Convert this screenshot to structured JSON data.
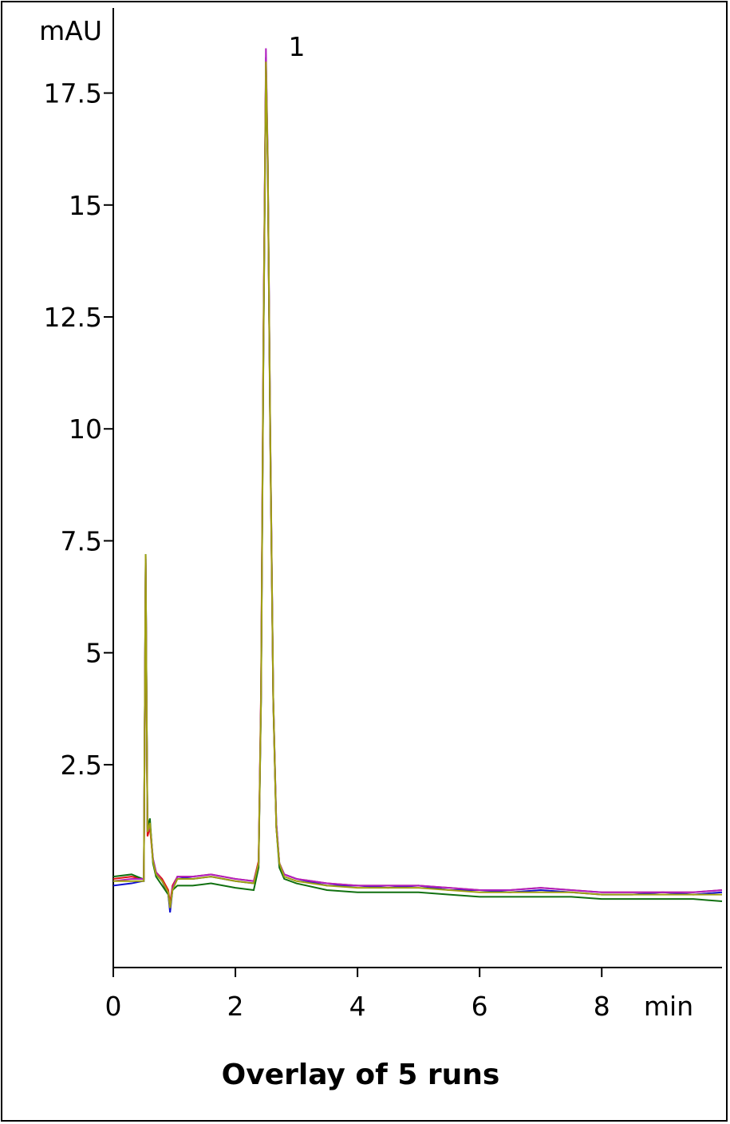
{
  "chart_data": {
    "type": "line",
    "title": "Overlay of 5 runs",
    "y_label": "mAU",
    "x_label": "min",
    "annotation": "1",
    "x": [
      0,
      0.3,
      0.48,
      0.5,
      0.53,
      0.56,
      0.6,
      0.65,
      0.7,
      0.8,
      0.9,
      0.93,
      0.97,
      1.05,
      1.3,
      1.6,
      2.0,
      2.3,
      2.38,
      2.42,
      2.46,
      2.5,
      2.53,
      2.57,
      2.62,
      2.67,
      2.72,
      2.8,
      3.0,
      3.5,
      4.0,
      4.5,
      5.0,
      5.5,
      6.0,
      6.5,
      7.0,
      7.5,
      8.0,
      8.5,
      9.0,
      9.5,
      9.97
    ],
    "series": [
      {
        "color": "#1010d0",
        "values": [
          -0.2,
          -0.15,
          -0.1,
          -0.1,
          7.1,
          1.0,
          1.2,
          0.4,
          0.1,
          -0.1,
          -0.4,
          -0.8,
          -0.3,
          0.0,
          -0.05,
          0.0,
          -0.1,
          -0.15,
          0.3,
          4,
          12,
          18.3,
          16,
          10,
          4,
          1.2,
          0.3,
          0.05,
          -0.05,
          -0.2,
          -0.2,
          -0.25,
          -0.2,
          -0.3,
          -0.3,
          -0.35,
          -0.3,
          -0.35,
          -0.4,
          -0.4,
          -0.35,
          -0.4,
          -0.35
        ]
      },
      {
        "color": "#e01010",
        "values": [
          -0.05,
          0.0,
          -0.05,
          -0.05,
          7.0,
          0.9,
          1.1,
          0.35,
          0.1,
          -0.05,
          -0.3,
          -0.6,
          -0.2,
          0.0,
          0.0,
          0.05,
          -0.05,
          -0.1,
          0.35,
          4.2,
          12.3,
          18.2,
          15.8,
          9.8,
          3.9,
          1.1,
          0.3,
          0.05,
          -0.05,
          -0.15,
          -0.2,
          -0.2,
          -0.2,
          -0.25,
          -0.3,
          -0.3,
          -0.25,
          -0.3,
          -0.35,
          -0.35,
          -0.35,
          -0.35,
          -0.3
        ]
      },
      {
        "color": "#107010",
        "values": [
          0.0,
          0.05,
          -0.05,
          -0.05,
          7.2,
          1.1,
          1.3,
          0.3,
          0.0,
          -0.2,
          -0.4,
          -0.7,
          -0.3,
          -0.2,
          -0.2,
          -0.15,
          -0.25,
          -0.3,
          0.2,
          3.9,
          11.8,
          18.1,
          15.9,
          9.9,
          3.9,
          1.1,
          0.2,
          -0.05,
          -0.15,
          -0.3,
          -0.35,
          -0.35,
          -0.35,
          -0.4,
          -0.45,
          -0.45,
          -0.45,
          -0.45,
          -0.5,
          -0.5,
          -0.5,
          -0.5,
          -0.55
        ]
      },
      {
        "color": "#b020c0",
        "values": [
          -0.1,
          -0.05,
          -0.05,
          -0.05,
          7.15,
          1.0,
          1.15,
          0.4,
          0.1,
          -0.1,
          -0.35,
          -0.7,
          -0.25,
          0.0,
          0.0,
          0.05,
          -0.05,
          -0.1,
          0.3,
          4.1,
          12.1,
          18.5,
          16.1,
          10.1,
          4.0,
          1.2,
          0.3,
          0.05,
          -0.05,
          -0.15,
          -0.2,
          -0.2,
          -0.2,
          -0.25,
          -0.3,
          -0.3,
          -0.25,
          -0.3,
          -0.35,
          -0.35,
          -0.35,
          -0.35,
          -0.3
        ]
      },
      {
        "color": "#a0a010",
        "values": [
          -0.1,
          -0.1,
          -0.1,
          -0.1,
          7.2,
          1.0,
          1.2,
          0.35,
          0.05,
          -0.1,
          -0.35,
          -0.7,
          -0.3,
          -0.05,
          -0.05,
          0.0,
          -0.1,
          -0.15,
          0.3,
          4.0,
          12.0,
          18.2,
          16.0,
          10.0,
          4.0,
          1.1,
          0.3,
          0.0,
          -0.1,
          -0.2,
          -0.25,
          -0.25,
          -0.25,
          -0.3,
          -0.35,
          -0.35,
          -0.35,
          -0.35,
          -0.4,
          -0.4,
          -0.4,
          -0.4,
          -0.4
        ]
      }
    ],
    "xlim": [
      0,
      9.97
    ],
    "ylim": [
      -2.03,
      19.4
    ],
    "xticks": [
      0,
      2,
      4,
      6,
      8
    ],
    "yticks": [
      2.5,
      5,
      7.5,
      10,
      12.5,
      15,
      17.5
    ]
  }
}
